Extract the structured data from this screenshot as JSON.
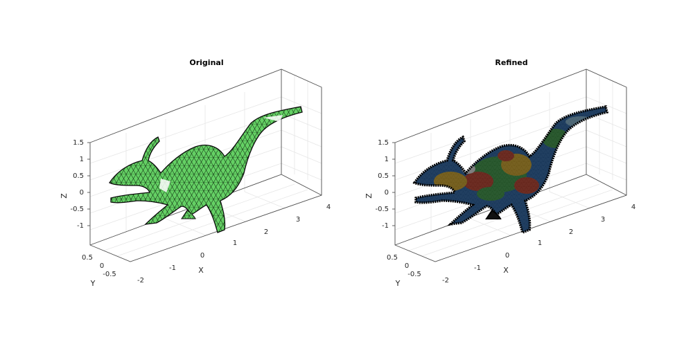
{
  "chart_data": [
    {
      "type": "mesh3d",
      "title": "Original",
      "xlabel": "X",
      "ylabel": "Y",
      "zlabel": "Z",
      "x_ticks": [
        "-2",
        "-1",
        "0",
        "1",
        "2",
        "3",
        "4"
      ],
      "y_ticks": [
        "0.5",
        "0",
        "-0.5"
      ],
      "z_ticks": [
        "1.5",
        "1",
        "0.5",
        "0",
        "-0.5",
        "-1"
      ],
      "xlim": [
        -2,
        4
      ],
      "ylim": [
        -0.75,
        0.75
      ],
      "zlim": [
        -1.5,
        1.5
      ],
      "grid": true,
      "face_color": "#5fce5f",
      "edge_color": "#000000"
    },
    {
      "type": "mesh3d",
      "title": "Refined",
      "xlabel": "X",
      "ylabel": "Y",
      "zlabel": "Z",
      "x_ticks": [
        "-2",
        "-1",
        "0",
        "1",
        "2",
        "3",
        "4"
      ],
      "y_ticks": [
        "0.5",
        "0",
        "-0.5"
      ],
      "z_ticks": [
        "1.5",
        "1",
        "0.5",
        "0",
        "-0.5",
        "-1"
      ],
      "xlim": [
        -2,
        4
      ],
      "ylim": [
        -0.75,
        0.75
      ],
      "zlim": [
        -1.5,
        1.5
      ],
      "grid": true,
      "face_colors": [
        "#2c6fbf",
        "#3fa84a",
        "#e8b72a",
        "#d2452f",
        "#8fc7e8",
        "#ffffff"
      ],
      "edge_color": "#000000"
    }
  ]
}
